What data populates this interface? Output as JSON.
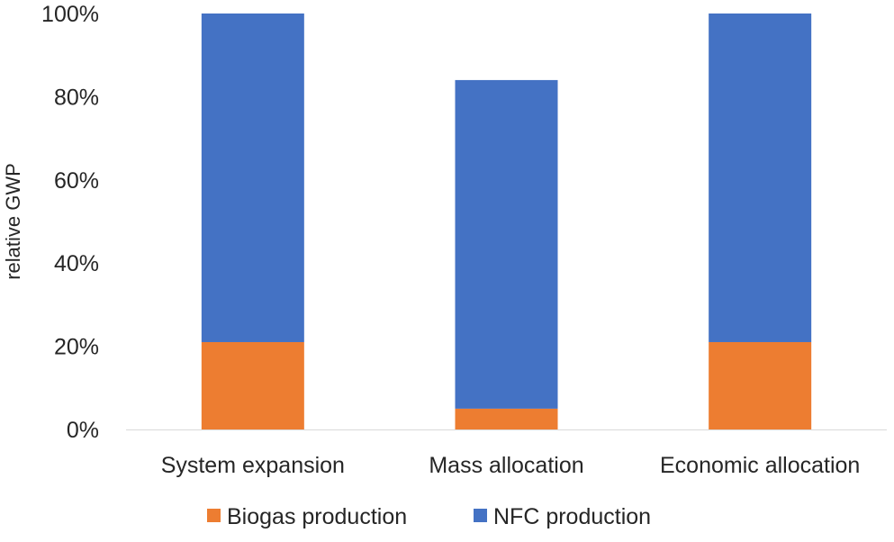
{
  "chart_data": {
    "type": "bar",
    "stacked": true,
    "title": "",
    "xlabel": "",
    "ylabel": "relative GWP",
    "categories": [
      "System expansion",
      "Mass allocation",
      "Economic allocation"
    ],
    "series": [
      {
        "name": "Biogas production",
        "color": "#ED7D31",
        "values": [
          21,
          5,
          21
        ]
      },
      {
        "name": "NFC production",
        "color": "#4472C4",
        "values": [
          79,
          79,
          79
        ]
      }
    ],
    "ylim": [
      0,
      100
    ],
    "yticks": [
      0,
      20,
      40,
      60,
      80,
      100
    ],
    "ytick_labels": [
      "0%",
      "20%",
      "40%",
      "60%",
      "80%",
      "100%"
    ],
    "grid": false,
    "legend_position": "bottom"
  }
}
